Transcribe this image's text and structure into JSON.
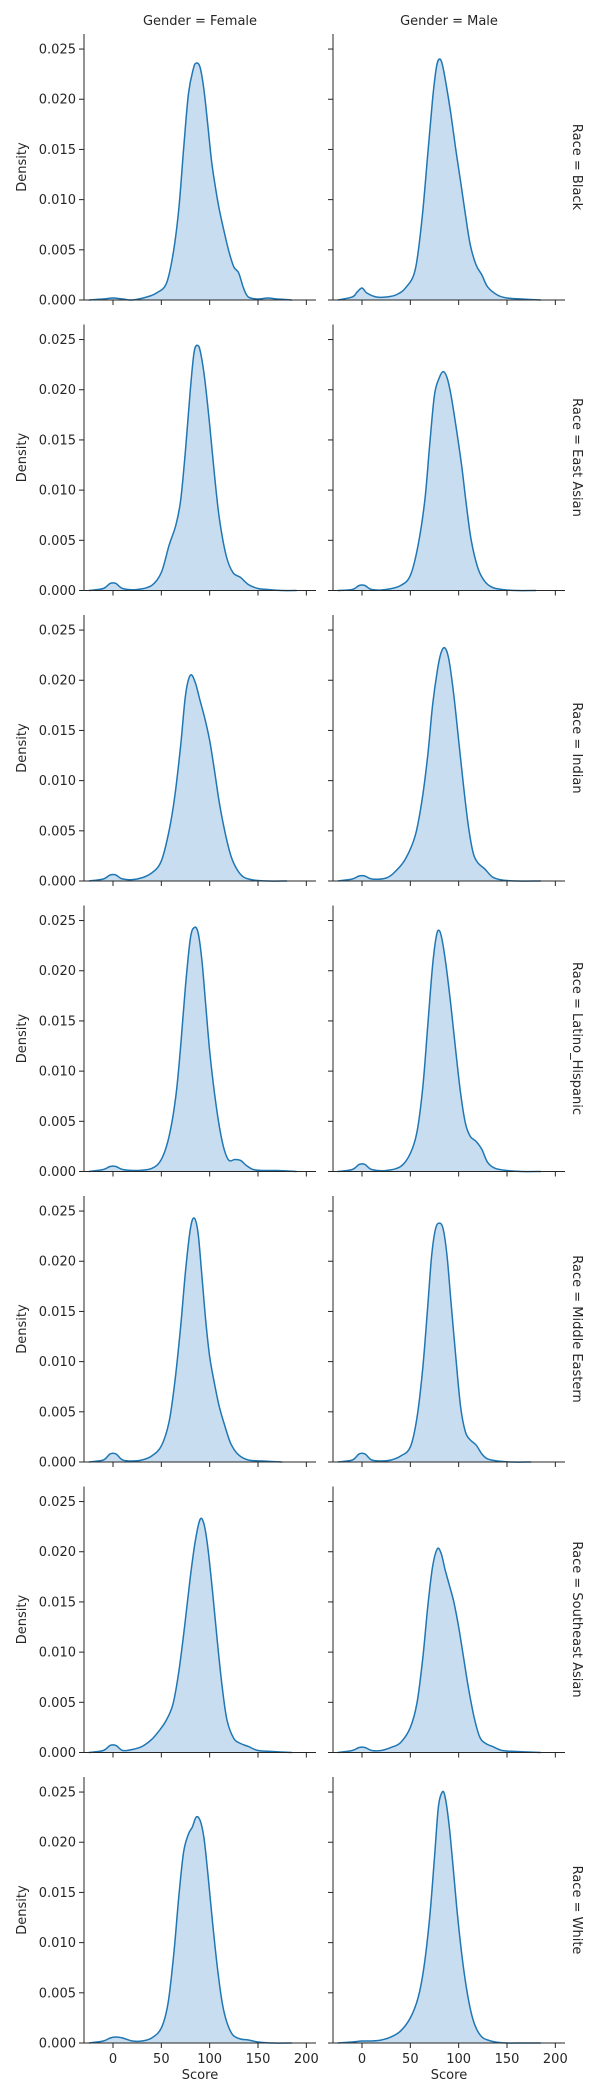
{
  "chart_data": {
    "type": "area",
    "kind": "kde-facet-grid",
    "col_titles": [
      "Gender = Female",
      "Gender = Male"
    ],
    "row_titles": [
      "Race = Black",
      "Race = East Asian",
      "Race = Indian",
      "Race = Latino_Hispanic",
      "Race = Middle Eastern",
      "Race = Southeast Asian",
      "Race = White"
    ],
    "xlabel": "Score",
    "ylabel": "Density",
    "xlim": [
      -30,
      210
    ],
    "ylim": [
      0,
      0.0265
    ],
    "x_ticks": [
      0,
      50,
      100,
      150,
      200
    ],
    "x_tick_labels": [
      "0",
      "50",
      "100",
      "150",
      "200"
    ],
    "y_ticks": [
      0,
      0.005,
      0.01,
      0.015,
      0.02,
      0.025
    ],
    "y_tick_labels": [
      "0.000",
      "0.005",
      "0.010",
      "0.015",
      "0.020",
      "0.025"
    ],
    "line_color": "#1f77b4",
    "fill_color": "#c6dbef",
    "panels": [
      {
        "row": 0,
        "col": 0,
        "name": "Black / Female",
        "x": [
          -25,
          -10,
          0,
          10,
          20,
          35,
          45,
          55,
          62,
          68,
          73,
          78,
          83,
          86,
          90,
          94,
          98,
          102,
          106,
          110,
          115,
          120,
          125,
          130,
          135,
          140,
          150,
          160,
          170,
          185
        ],
        "y": [
          0,
          0.0001,
          0.0002,
          0.0001,
          0,
          0.0003,
          0.0007,
          0.0016,
          0.0045,
          0.009,
          0.015,
          0.0205,
          0.023,
          0.0236,
          0.0232,
          0.021,
          0.0175,
          0.0138,
          0.0112,
          0.009,
          0.0068,
          0.0048,
          0.0033,
          0.0027,
          0.0012,
          0.0003,
          0.0001,
          0.0002,
          0.0001,
          0
        ]
      },
      {
        "row": 0,
        "col": 1,
        "name": "Black / Male",
        "x": [
          -25,
          -10,
          -5,
          0,
          5,
          15,
          25,
          35,
          45,
          55,
          62,
          68,
          73,
          77,
          80,
          83,
          87,
          92,
          97,
          102,
          107,
          112,
          118,
          124,
          130,
          140,
          150,
          165,
          185
        ],
        "y": [
          0,
          0.0003,
          0.0008,
          0.0012,
          0.0007,
          0.0003,
          0.0003,
          0.0005,
          0.0012,
          0.003,
          0.008,
          0.0145,
          0.02,
          0.0232,
          0.024,
          0.0235,
          0.0215,
          0.0185,
          0.015,
          0.0118,
          0.0085,
          0.0055,
          0.0035,
          0.0025,
          0.0013,
          0.0005,
          0.0002,
          0.0001,
          0
        ]
      },
      {
        "row": 1,
        "col": 0,
        "name": "East Asian / Female",
        "x": [
          -25,
          -10,
          -3,
          3,
          10,
          25,
          40,
          50,
          58,
          65,
          70,
          75,
          80,
          84,
          88,
          91,
          95,
          100,
          105,
          110,
          117,
          124,
          132,
          140,
          150,
          160,
          175,
          190
        ],
        "y": [
          0,
          0.0002,
          0.0007,
          0.0007,
          0.0002,
          0.0001,
          0.0005,
          0.0018,
          0.0045,
          0.0065,
          0.009,
          0.014,
          0.02,
          0.0238,
          0.0244,
          0.0235,
          0.021,
          0.0165,
          0.0115,
          0.0072,
          0.0035,
          0.0018,
          0.0013,
          0.0006,
          0.0002,
          0.0001,
          0,
          0
        ]
      },
      {
        "row": 1,
        "col": 1,
        "name": "East Asian / Male",
        "x": [
          -25,
          -10,
          -3,
          3,
          10,
          25,
          40,
          50,
          58,
          65,
          70,
          75,
          80,
          84,
          88,
          92,
          97,
          103,
          108,
          113,
          120,
          127,
          135,
          145,
          160,
          180
        ],
        "y": [
          0,
          0.0001,
          0.0005,
          0.0005,
          0.0001,
          0.0001,
          0.0005,
          0.0015,
          0.0045,
          0.009,
          0.0145,
          0.0195,
          0.0212,
          0.0218,
          0.0212,
          0.0195,
          0.0165,
          0.0125,
          0.0085,
          0.005,
          0.0022,
          0.0009,
          0.0003,
          0.0001,
          0,
          0
        ]
      },
      {
        "row": 2,
        "col": 0,
        "name": "Indian / Female",
        "x": [
          -25,
          -10,
          -3,
          3,
          10,
          25,
          40,
          50,
          58,
          64,
          70,
          75,
          80,
          85,
          90,
          95,
          100,
          105,
          110,
          116,
          122,
          128,
          135,
          145,
          160,
          180
        ],
        "y": [
          0,
          0.0002,
          0.0006,
          0.0006,
          0.0002,
          0.0002,
          0.0008,
          0.002,
          0.005,
          0.0085,
          0.0135,
          0.0185,
          0.0205,
          0.0198,
          0.018,
          0.0162,
          0.014,
          0.011,
          0.0078,
          0.0048,
          0.0025,
          0.0012,
          0.0004,
          0.0001,
          0,
          0
        ]
      },
      {
        "row": 2,
        "col": 1,
        "name": "Indian / Male",
        "x": [
          -25,
          -10,
          -3,
          3,
          10,
          25,
          35,
          45,
          55,
          62,
          68,
          73,
          78,
          82,
          86,
          90,
          95,
          100,
          105,
          110,
          115,
          120,
          127,
          135,
          145,
          160,
          185
        ],
        "y": [
          0,
          0.0002,
          0.0005,
          0.0005,
          0.0002,
          0.0003,
          0.001,
          0.0022,
          0.0045,
          0.008,
          0.0125,
          0.0175,
          0.021,
          0.0228,
          0.0232,
          0.022,
          0.0185,
          0.014,
          0.0095,
          0.0055,
          0.0028,
          0.0018,
          0.0012,
          0.0004,
          0.0001,
          0,
          0
        ]
      },
      {
        "row": 3,
        "col": 0,
        "name": "Latino_Hispanic / Female",
        "x": [
          -25,
          -10,
          -3,
          3,
          10,
          25,
          40,
          50,
          58,
          65,
          70,
          75,
          80,
          84,
          88,
          92,
          96,
          100,
          105,
          110,
          115,
          120,
          126,
          132,
          138,
          145,
          155,
          170,
          190
        ],
        "y": [
          0,
          0.0002,
          0.0005,
          0.0005,
          0.0002,
          0.0001,
          0.0003,
          0.0012,
          0.0035,
          0.0075,
          0.0125,
          0.0185,
          0.0232,
          0.0243,
          0.0238,
          0.021,
          0.0165,
          0.012,
          0.0078,
          0.0045,
          0.0022,
          0.0011,
          0.0012,
          0.0011,
          0.0006,
          0.0002,
          0.0001,
          0.0001,
          0
        ]
      },
      {
        "row": 3,
        "col": 1,
        "name": "Latino_Hispanic / Male",
        "x": [
          -25,
          -10,
          -3,
          3,
          10,
          25,
          40,
          50,
          57,
          63,
          68,
          73,
          77,
          80,
          83,
          87,
          92,
          97,
          102,
          107,
          112,
          118,
          124,
          130,
          138,
          150,
          165,
          185
        ],
        "y": [
          0,
          0.0002,
          0.0007,
          0.0007,
          0.0002,
          0.0001,
          0.0005,
          0.0018,
          0.004,
          0.0085,
          0.0145,
          0.0205,
          0.0235,
          0.024,
          0.023,
          0.0205,
          0.0165,
          0.012,
          0.0078,
          0.0048,
          0.0035,
          0.003,
          0.0022,
          0.0009,
          0.0003,
          0.0001,
          0,
          0
        ]
      },
      {
        "row": 4,
        "col": 0,
        "name": "Middle Eastern / Female",
        "x": [
          -25,
          -10,
          -3,
          3,
          10,
          20,
          30,
          40,
          50,
          58,
          64,
          70,
          75,
          80,
          84,
          88,
          92,
          96,
          100,
          105,
          110,
          116,
          122,
          130,
          140,
          155,
          175
        ],
        "y": [
          0,
          0.0002,
          0.0008,
          0.0008,
          0.0002,
          0.0001,
          0.0002,
          0.0006,
          0.0016,
          0.004,
          0.008,
          0.0135,
          0.019,
          0.0232,
          0.0243,
          0.0228,
          0.0185,
          0.014,
          0.0105,
          0.0078,
          0.0055,
          0.0035,
          0.0018,
          0.0007,
          0.0002,
          0.0001,
          0
        ]
      },
      {
        "row": 4,
        "col": 1,
        "name": "Middle Eastern / Male",
        "x": [
          -25,
          -10,
          -3,
          3,
          10,
          20,
          30,
          40,
          50,
          57,
          63,
          68,
          72,
          76,
          80,
          84,
          88,
          92,
          97,
          102,
          107,
          112,
          118,
          124,
          130,
          140,
          155,
          175
        ],
        "y": [
          0,
          0.0002,
          0.0008,
          0.0008,
          0.0002,
          0.0001,
          0.0002,
          0.0006,
          0.0015,
          0.0045,
          0.0095,
          0.0155,
          0.0205,
          0.0232,
          0.0238,
          0.0232,
          0.0205,
          0.016,
          0.0105,
          0.0055,
          0.003,
          0.0022,
          0.0017,
          0.0008,
          0.0003,
          0.0001,
          0,
          0
        ]
      },
      {
        "row": 5,
        "col": 0,
        "name": "Southeast Asian / Female",
        "x": [
          -25,
          -10,
          -3,
          3,
          10,
          20,
          30,
          40,
          48,
          55,
          62,
          68,
          74,
          80,
          85,
          90,
          94,
          98,
          103,
          108,
          113,
          118,
          125,
          132,
          140,
          150,
          165,
          185
        ],
        "y": [
          0,
          0.0002,
          0.0007,
          0.0007,
          0.0002,
          0.0003,
          0.0006,
          0.0013,
          0.0022,
          0.0032,
          0.0048,
          0.008,
          0.0125,
          0.0175,
          0.021,
          0.0232,
          0.0228,
          0.0205,
          0.016,
          0.011,
          0.0065,
          0.0032,
          0.0014,
          0.0009,
          0.0006,
          0.0002,
          0.0001,
          0
        ]
      },
      {
        "row": 5,
        "col": 1,
        "name": "Southeast Asian / Male",
        "x": [
          -25,
          -10,
          -3,
          3,
          10,
          20,
          30,
          40,
          50,
          57,
          63,
          68,
          73,
          78,
          82,
          86,
          90,
          95,
          100,
          105,
          110,
          116,
          122,
          128,
          135,
          145,
          160,
          185
        ],
        "y": [
          0,
          0.0002,
          0.0005,
          0.0005,
          0.0002,
          0.0002,
          0.0005,
          0.001,
          0.0025,
          0.005,
          0.0095,
          0.0145,
          0.0185,
          0.0203,
          0.0198,
          0.0182,
          0.0168,
          0.015,
          0.0125,
          0.0095,
          0.0065,
          0.0035,
          0.0015,
          0.0009,
          0.0006,
          0.0002,
          0.0001,
          0
        ]
      },
      {
        "row": 6,
        "col": 0,
        "name": "White / Female",
        "x": [
          -25,
          -10,
          -3,
          3,
          10,
          20,
          30,
          40,
          50,
          57,
          63,
          68,
          73,
          78,
          82,
          86,
          90,
          94,
          98,
          103,
          108,
          113,
          118,
          124,
          132,
          140,
          150,
          165,
          185
        ],
        "y": [
          0,
          0.0002,
          0.0005,
          0.0006,
          0.0005,
          0.0002,
          0.0002,
          0.0005,
          0.0015,
          0.004,
          0.009,
          0.0145,
          0.019,
          0.0208,
          0.0215,
          0.0225,
          0.0222,
          0.0205,
          0.017,
          0.012,
          0.0075,
          0.004,
          0.002,
          0.0008,
          0.0004,
          0.0003,
          0.0001,
          0,
          0
        ]
      },
      {
        "row": 6,
        "col": 1,
        "name": "White / Male",
        "x": [
          -25,
          -10,
          0,
          10,
          20,
          30,
          40,
          50,
          58,
          64,
          70,
          75,
          79,
          83,
          86,
          90,
          94,
          98,
          103,
          108,
          113,
          118,
          124,
          130,
          138,
          150,
          165,
          185
        ],
        "y": [
          0,
          0.0001,
          0.0002,
          0.0002,
          0.0003,
          0.0006,
          0.0012,
          0.0025,
          0.0045,
          0.0075,
          0.0125,
          0.0185,
          0.0235,
          0.025,
          0.0245,
          0.0218,
          0.0178,
          0.0135,
          0.009,
          0.0055,
          0.003,
          0.0015,
          0.0006,
          0.0003,
          0.0001,
          0,
          0,
          0
        ]
      }
    ]
  }
}
